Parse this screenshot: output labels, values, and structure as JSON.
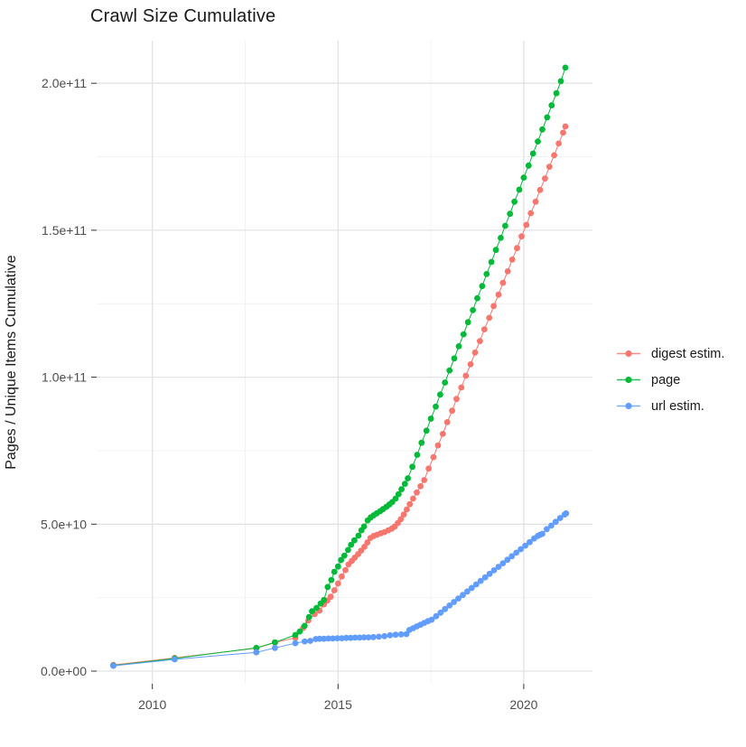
{
  "title": "Crawl Size Cumulative",
  "colors": {
    "digest": "#F8766D",
    "page": "#00BA38",
    "url": "#619CFF",
    "grid_major": "#e3e3e3",
    "grid_minor": "#f1f1f1",
    "tick_mark": "#333333",
    "tick_text": "#4d4d4d",
    "text": "#1a1a1a",
    "background": "#ffffff"
  },
  "chart_data": {
    "type": "scatter",
    "title": "Crawl Size Cumulative",
    "xlabel": "",
    "ylabel": "Pages / Unique Items Cumulative",
    "grid": true,
    "legend_position": "right",
    "xlim": [
      2008.5,
      2021.85
    ],
    "ylim": [
      -4300000000.0,
      214500000000.0
    ],
    "x_ticks": [
      2010,
      2015,
      2020
    ],
    "x_tick_labels": [
      "2010",
      "2015",
      "2020"
    ],
    "x_minor_ticks": [
      2012.5,
      2017.5
    ],
    "y_ticks": [
      0,
      50000000000.0,
      100000000000.0,
      150000000000.0,
      200000000000.0
    ],
    "y_tick_labels": [
      "0.0e+00",
      "5.0e+10",
      "1.0e+11",
      "1.5e+11",
      "2.0e+11"
    ],
    "y_minor_ticks": [
      25000000000.0,
      75000000000.0,
      125000000000.0,
      175000000000.0
    ],
    "value_unit": 1000000000.0,
    "series": [
      {
        "name": "digest estim.",
        "color": "#F8766D",
        "points": [
          [
            2008.95,
            2.1
          ],
          [
            2010.6,
            4.5
          ],
          [
            2012.8,
            7.8
          ],
          [
            2013.3,
            9.7
          ],
          [
            2013.85,
            11.3
          ],
          [
            2014.06,
            14.7
          ],
          [
            2014.2,
            17.2
          ],
          [
            2014.37,
            19.4
          ],
          [
            2014.5,
            20.6
          ],
          [
            2014.62,
            22.7
          ],
          [
            2014.71,
            24.0
          ],
          [
            2014.8,
            25.3
          ],
          [
            2014.9,
            27.5
          ],
          [
            2015.0,
            29.8
          ],
          [
            2015.1,
            32.2
          ],
          [
            2015.2,
            34.4
          ],
          [
            2015.28,
            36.3
          ],
          [
            2015.37,
            37.5
          ],
          [
            2015.45,
            38.6
          ],
          [
            2015.54,
            39.8
          ],
          [
            2015.62,
            41.0
          ],
          [
            2015.71,
            42.3
          ],
          [
            2015.79,
            43.8
          ],
          [
            2015.87,
            45.3
          ],
          [
            2015.96,
            46.0
          ],
          [
            2016.05,
            46.4
          ],
          [
            2016.15,
            46.9
          ],
          [
            2016.25,
            47.3
          ],
          [
            2016.35,
            47.9
          ],
          [
            2016.45,
            48.5
          ],
          [
            2016.53,
            49.2
          ],
          [
            2016.61,
            50.4
          ],
          [
            2016.69,
            51.7
          ],
          [
            2016.77,
            53.3
          ],
          [
            2016.85,
            55.0
          ],
          [
            2016.93,
            56.8
          ],
          [
            2017.02,
            58.7
          ],
          [
            2017.12,
            60.8
          ],
          [
            2017.22,
            62.9
          ],
          [
            2017.32,
            65.0
          ],
          [
            2017.44,
            68.9
          ],
          [
            2017.57,
            72.8
          ],
          [
            2017.69,
            76.8
          ],
          [
            2017.82,
            80.7
          ],
          [
            2017.94,
            84.7
          ],
          [
            2018.07,
            88.6
          ],
          [
            2018.19,
            92.6
          ],
          [
            2018.32,
            96.5
          ],
          [
            2018.44,
            100.5
          ],
          [
            2018.57,
            104.4
          ],
          [
            2018.69,
            108.4
          ],
          [
            2018.82,
            112.3
          ],
          [
            2018.94,
            116.3
          ],
          [
            2019.07,
            120.2
          ],
          [
            2019.19,
            124.2
          ],
          [
            2019.32,
            128.1
          ],
          [
            2019.44,
            132.1
          ],
          [
            2019.57,
            136.0
          ],
          [
            2019.69,
            140.0
          ],
          [
            2019.82,
            143.9
          ],
          [
            2019.94,
            147.9
          ],
          [
            2020.07,
            151.8
          ],
          [
            2020.19,
            155.8
          ],
          [
            2020.32,
            159.7
          ],
          [
            2020.44,
            163.7
          ],
          [
            2020.57,
            167.6
          ],
          [
            2020.69,
            171.6
          ],
          [
            2020.82,
            175.5
          ],
          [
            2020.94,
            179.5
          ],
          [
            2021.06,
            183.2
          ],
          [
            2021.12,
            185.3
          ]
        ]
      },
      {
        "name": "page",
        "color": "#00BA38",
        "points": [
          [
            2008.95,
            1.9
          ],
          [
            2010.6,
            4.3
          ],
          [
            2012.8,
            7.9
          ],
          [
            2013.3,
            9.8
          ],
          [
            2013.85,
            12.3
          ],
          [
            2013.97,
            13.5
          ],
          [
            2014.1,
            15.4
          ],
          [
            2014.22,
            18.4
          ],
          [
            2014.3,
            20.4
          ],
          [
            2014.42,
            21.5
          ],
          [
            2014.53,
            23.0
          ],
          [
            2014.62,
            24.2
          ],
          [
            2014.72,
            28.6
          ],
          [
            2014.82,
            31.0
          ],
          [
            2014.9,
            33.8
          ],
          [
            2015.0,
            35.6
          ],
          [
            2015.08,
            37.8
          ],
          [
            2015.17,
            39.3
          ],
          [
            2015.27,
            41.2
          ],
          [
            2015.35,
            43.0
          ],
          [
            2015.44,
            44.5
          ],
          [
            2015.55,
            46.1
          ],
          [
            2015.63,
            47.9
          ],
          [
            2015.7,
            49.2
          ],
          [
            2015.8,
            51.3
          ],
          [
            2015.88,
            52.3
          ],
          [
            2015.96,
            53.0
          ],
          [
            2016.04,
            53.7
          ],
          [
            2016.13,
            54.4
          ],
          [
            2016.21,
            55.1
          ],
          [
            2016.3,
            55.9
          ],
          [
            2016.38,
            56.7
          ],
          [
            2016.46,
            57.5
          ],
          [
            2016.55,
            58.7
          ],
          [
            2016.63,
            60.2
          ],
          [
            2016.71,
            61.9
          ],
          [
            2016.8,
            63.7
          ],
          [
            2016.88,
            65.6
          ],
          [
            2017.0,
            69.5
          ],
          [
            2017.13,
            73.6
          ],
          [
            2017.25,
            77.7
          ],
          [
            2017.38,
            81.8
          ],
          [
            2017.5,
            85.9
          ],
          [
            2017.63,
            90.0
          ],
          [
            2017.75,
            94.1
          ],
          [
            2017.88,
            98.2
          ],
          [
            2018.0,
            102.3
          ],
          [
            2018.13,
            106.4
          ],
          [
            2018.25,
            110.5
          ],
          [
            2018.38,
            114.6
          ],
          [
            2018.5,
            118.7
          ],
          [
            2018.63,
            122.8
          ],
          [
            2018.75,
            126.9
          ],
          [
            2018.88,
            131.0
          ],
          [
            2019.0,
            135.1
          ],
          [
            2019.13,
            139.2
          ],
          [
            2019.25,
            143.3
          ],
          [
            2019.38,
            147.4
          ],
          [
            2019.5,
            151.5
          ],
          [
            2019.63,
            155.6
          ],
          [
            2019.75,
            159.7
          ],
          [
            2019.88,
            163.8
          ],
          [
            2020.0,
            167.9
          ],
          [
            2020.13,
            172.0
          ],
          [
            2020.25,
            176.1
          ],
          [
            2020.38,
            180.2
          ],
          [
            2020.5,
            184.3
          ],
          [
            2020.63,
            188.4
          ],
          [
            2020.75,
            192.5
          ],
          [
            2020.88,
            196.6
          ],
          [
            2021.0,
            200.7
          ],
          [
            2021.12,
            205.3
          ]
        ]
      },
      {
        "name": "url estim.",
        "color": "#619CFF",
        "points": [
          [
            2008.95,
            1.8
          ],
          [
            2010.6,
            4.0
          ],
          [
            2012.8,
            6.4
          ],
          [
            2013.3,
            7.9
          ],
          [
            2013.85,
            9.5
          ],
          [
            2014.1,
            10.1
          ],
          [
            2014.25,
            10.3
          ],
          [
            2014.4,
            10.9
          ],
          [
            2014.5,
            11.0
          ],
          [
            2014.62,
            11.0
          ],
          [
            2014.74,
            11.1
          ],
          [
            2014.86,
            11.1
          ],
          [
            2014.98,
            11.2
          ],
          [
            2015.1,
            11.2
          ],
          [
            2015.22,
            11.3
          ],
          [
            2015.34,
            11.3
          ],
          [
            2015.46,
            11.4
          ],
          [
            2015.58,
            11.4
          ],
          [
            2015.7,
            11.5
          ],
          [
            2015.82,
            11.5
          ],
          [
            2015.95,
            11.6
          ],
          [
            2016.1,
            11.7
          ],
          [
            2016.25,
            11.9
          ],
          [
            2016.4,
            12.2
          ],
          [
            2016.55,
            12.4
          ],
          [
            2016.7,
            12.5
          ],
          [
            2016.84,
            12.6
          ],
          [
            2016.92,
            14.0
          ],
          [
            2017.02,
            14.6
          ],
          [
            2017.12,
            15.2
          ],
          [
            2017.22,
            15.8
          ],
          [
            2017.32,
            16.4
          ],
          [
            2017.42,
            17.0
          ],
          [
            2017.52,
            17.5
          ],
          [
            2017.64,
            18.7
          ],
          [
            2017.76,
            19.9
          ],
          [
            2017.88,
            21.1
          ],
          [
            2018.0,
            22.3
          ],
          [
            2018.12,
            23.5
          ],
          [
            2018.24,
            24.7
          ],
          [
            2018.36,
            25.9
          ],
          [
            2018.48,
            27.1
          ],
          [
            2018.6,
            28.3
          ],
          [
            2018.72,
            29.5
          ],
          [
            2018.84,
            30.7
          ],
          [
            2018.96,
            31.9
          ],
          [
            2019.08,
            33.1
          ],
          [
            2019.2,
            34.3
          ],
          [
            2019.32,
            35.5
          ],
          [
            2019.44,
            36.7
          ],
          [
            2019.56,
            37.9
          ],
          [
            2019.68,
            39.1
          ],
          [
            2019.8,
            40.3
          ],
          [
            2019.92,
            41.5
          ],
          [
            2020.04,
            42.7
          ],
          [
            2020.16,
            43.9
          ],
          [
            2020.28,
            45.1
          ],
          [
            2020.38,
            46.0
          ],
          [
            2020.44,
            46.4
          ],
          [
            2020.5,
            46.7
          ],
          [
            2020.62,
            48.3
          ],
          [
            2020.74,
            49.5
          ],
          [
            2020.86,
            50.8
          ],
          [
            2020.98,
            52.1
          ],
          [
            2021.1,
            53.3
          ],
          [
            2021.14,
            53.7
          ]
        ]
      }
    ]
  }
}
